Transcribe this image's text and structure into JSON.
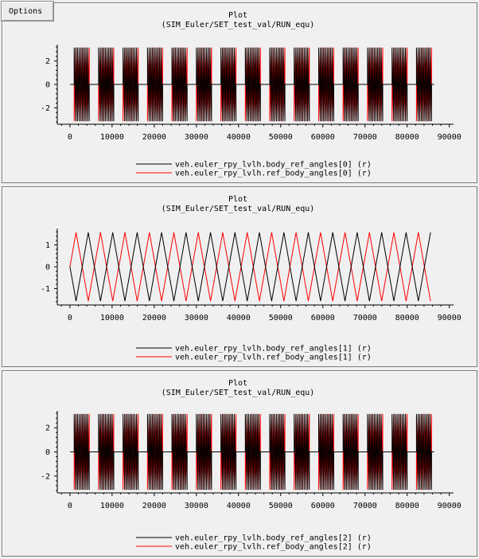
{
  "options_label": "Options",
  "colors": {
    "series_black": "#000000",
    "series_red": "#ff0000",
    "panel_bg": "#f0f0f0"
  },
  "chart_data": [
    {
      "type": "line",
      "title": "Plot",
      "subtitle": "(SIM_Euler/SET_test_val/RUN_equ)",
      "xlabel": "",
      "ylabel": "",
      "xlim": [
        -3000,
        91000
      ],
      "ylim": [
        -3.4,
        3.4
      ],
      "x_ticks": [
        0,
        10000,
        20000,
        30000,
        40000,
        50000,
        60000,
        70000,
        80000,
        90000
      ],
      "y_ticks": [
        -2,
        0,
        2
      ],
      "y_tick_labels": [
        "-2",
        "0",
        "2"
      ],
      "legend_placement": "bottom-center",
      "grid": false,
      "series": [
        {
          "name": "veh.euler_rpy_lvlh.body_ref_angles[0] (r)",
          "color": "#000000",
          "pattern": "sawtooth",
          "amplitude": 3.14159,
          "period": 5800,
          "start_x": 1000,
          "end_x": 86400
        },
        {
          "name": "veh.euler_rpy_lvlh.ref_body_angles[0] (r)",
          "color": "#ff0000",
          "pattern": "sawtooth-negated",
          "amplitude": 3.14159,
          "period": 5800,
          "start_x": 1000,
          "end_x": 86400
        }
      ]
    },
    {
      "type": "line",
      "title": "Plot",
      "subtitle": "(SIM_Euler/SET_test_val/RUN_equ)",
      "xlabel": "",
      "ylabel": "",
      "xlim": [
        -3000,
        91000
      ],
      "ylim": [
        -1.75,
        1.75
      ],
      "x_ticks": [
        0,
        10000,
        20000,
        30000,
        40000,
        50000,
        60000,
        70000,
        80000,
        90000
      ],
      "y_ticks": [
        -1,
        0,
        1
      ],
      "y_tick_labels": [
        "-1",
        "0",
        "1"
      ],
      "legend_placement": "bottom-center",
      "grid": false,
      "series": [
        {
          "name": "veh.euler_rpy_lvlh.body_ref_angles[1] (r)",
          "color": "#000000",
          "pattern": "triangle-neg",
          "amplitude": 1.5708,
          "period": 5800,
          "start_x": 0,
          "end_x": 86400
        },
        {
          "name": "veh.euler_rpy_lvlh.ref_body_angles[1] (r)",
          "color": "#ff0000",
          "pattern": "triangle-pos",
          "amplitude": 1.5708,
          "period": 5800,
          "start_x": 0,
          "end_x": 86400
        }
      ]
    },
    {
      "type": "line",
      "title": "Plot",
      "subtitle": "(SIM_Euler/SET_test_val/RUN_equ)",
      "xlabel": "",
      "ylabel": "",
      "xlim": [
        -3000,
        91000
      ],
      "ylim": [
        -3.4,
        3.4
      ],
      "x_ticks": [
        0,
        10000,
        20000,
        30000,
        40000,
        50000,
        60000,
        70000,
        80000,
        90000
      ],
      "y_ticks": [
        -2,
        0,
        2
      ],
      "y_tick_labels": [
        "-2",
        "0",
        "2"
      ],
      "legend_placement": "bottom-center",
      "grid": false,
      "series": [
        {
          "name": "veh.euler_rpy_lvlh.body_ref_angles[2] (r)",
          "color": "#000000",
          "pattern": "sawtooth",
          "amplitude": 3.14159,
          "period": 5800,
          "start_x": 1000,
          "end_x": 86400
        },
        {
          "name": "veh.euler_rpy_lvlh.ref_body_angles[2] (r)",
          "color": "#ff0000",
          "pattern": "sawtooth-negated",
          "amplitude": 3.14159,
          "period": 5800,
          "start_x": 1000,
          "end_x": 86400
        }
      ]
    }
  ]
}
